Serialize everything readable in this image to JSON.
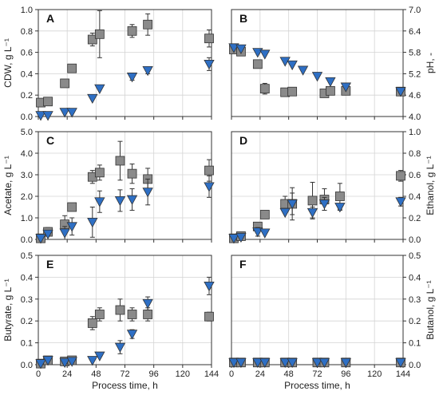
{
  "colors": {
    "square": "#8a8a8a",
    "triangle": "#2e6fc4",
    "edge": "#333333"
  },
  "chart_data": [
    {
      "type": "scatter",
      "panel": "A",
      "xlabel": "",
      "ylabel": "CDW, g L⁻¹",
      "xlim": [
        0,
        144
      ],
      "ylim": [
        0,
        1.0
      ],
      "xticks": [
        0,
        24,
        48,
        72,
        96,
        120,
        144
      ],
      "yticks": [
        0,
        0.2,
        0.4,
        0.6,
        0.8,
        1.0
      ],
      "xtick_labels": [
        "",
        "",
        "",
        "",
        "",
        "",
        ""
      ],
      "ytick_labels": [
        "0.0",
        "0.2",
        "0.4",
        "0.6",
        "0.8",
        "1.0"
      ],
      "grid": true,
      "series": [
        {
          "marker": "square",
          "points": [
            {
              "x": 2,
              "y": 0.13,
              "err": 0.03
            },
            {
              "x": 8,
              "y": 0.14,
              "err": 0
            },
            {
              "x": 22,
              "y": 0.31,
              "err": 0
            },
            {
              "x": 28,
              "y": 0.45,
              "err": 0
            },
            {
              "x": 45,
              "y": 0.72,
              "err": 0.06
            },
            {
              "x": 51,
              "y": 0.77,
              "err": 0.22
            },
            {
              "x": 78,
              "y": 0.8,
              "err": 0.06
            },
            {
              "x": 91,
              "y": 0.86,
              "err": 0.1
            },
            {
              "x": 142,
              "y": 0.73,
              "err": 0.08
            }
          ]
        },
        {
          "marker": "triangle",
          "points": [
            {
              "x": 2,
              "y": 0.01,
              "err": 0
            },
            {
              "x": 8,
              "y": 0.01,
              "err": 0
            },
            {
              "x": 22,
              "y": 0.04,
              "err": 0
            },
            {
              "x": 28,
              "y": 0.04,
              "err": 0
            },
            {
              "x": 45,
              "y": 0.17,
              "err": 0
            },
            {
              "x": 51,
              "y": 0.26,
              "err": 0
            },
            {
              "x": 78,
              "y": 0.37,
              "err": 0.03
            },
            {
              "x": 91,
              "y": 0.43,
              "err": 0.03
            },
            {
              "x": 142,
              "y": 0.49,
              "err": 0.06
            }
          ]
        }
      ]
    },
    {
      "type": "scatter",
      "panel": "B",
      "xlabel": "",
      "ylabel": "pH, -",
      "xlim": [
        0,
        144
      ],
      "ylim": [
        4.0,
        7.0
      ],
      "xticks": [
        0,
        24,
        48,
        72,
        96,
        120,
        144
      ],
      "yticks": [
        4.0,
        4.6,
        5.2,
        5.8,
        6.4,
        7.0
      ],
      "xtick_labels": [
        "",
        "",
        "",
        "",
        "",
        "",
        ""
      ],
      "ytick_labels": [
        "4.0",
        "4.6",
        "5.2",
        "5.8",
        "6.4",
        "7.0"
      ],
      "grid": true,
      "series": [
        {
          "marker": "square",
          "points": [
            {
              "x": 2,
              "y": 5.88,
              "err": 0
            },
            {
              "x": 8,
              "y": 5.82,
              "err": 0
            },
            {
              "x": 22,
              "y": 5.47,
              "err": 0
            },
            {
              "x": 28,
              "y": 4.78,
              "err": 0.15
            },
            {
              "x": 45,
              "y": 4.68,
              "err": 0
            },
            {
              "x": 51,
              "y": 4.7,
              "err": 0
            },
            {
              "x": 78,
              "y": 4.65,
              "err": 0
            },
            {
              "x": 83,
              "y": 4.72,
              "err": 0
            },
            {
              "x": 96,
              "y": 4.72,
              "err": 0
            },
            {
              "x": 142,
              "y": 4.7,
              "err": 0
            }
          ]
        },
        {
          "marker": "triangle",
          "points": [
            {
              "x": 2,
              "y": 5.93,
              "err": 0
            },
            {
              "x": 8,
              "y": 5.9,
              "err": 0
            },
            {
              "x": 22,
              "y": 5.8,
              "err": 0
            },
            {
              "x": 28,
              "y": 5.75,
              "err": 0
            },
            {
              "x": 45,
              "y": 5.55,
              "err": 0
            },
            {
              "x": 51,
              "y": 5.45,
              "err": 0
            },
            {
              "x": 60,
              "y": 5.3,
              "err": 0
            },
            {
              "x": 72,
              "y": 5.13,
              "err": 0
            },
            {
              "x": 83,
              "y": 4.98,
              "err": 0
            },
            {
              "x": 96,
              "y": 4.83,
              "err": 0
            },
            {
              "x": 142,
              "y": 4.7,
              "err": 0
            }
          ]
        }
      ]
    },
    {
      "type": "scatter",
      "panel": "C",
      "xlabel": "",
      "ylabel": "Acetate, g L⁻¹",
      "xlim": [
        0,
        144
      ],
      "ylim": [
        0,
        5.0
      ],
      "xticks": [
        0,
        24,
        48,
        72,
        96,
        120,
        144
      ],
      "yticks": [
        0,
        1,
        2,
        3,
        4,
        5
      ],
      "xtick_labels": [
        "",
        "",
        "",
        "",
        "",
        "",
        ""
      ],
      "ytick_labels": [
        "0.0",
        "1.0",
        "2.0",
        "3.0",
        "4.0",
        "5.0"
      ],
      "grid": true,
      "series": [
        {
          "marker": "square",
          "points": [
            {
              "x": 2,
              "y": 0.05,
              "err": 0.1
            },
            {
              "x": 8,
              "y": 0.35,
              "err": 0.2
            },
            {
              "x": 22,
              "y": 0.7,
              "err": 0.4
            },
            {
              "x": 28,
              "y": 1.5,
              "err": 0
            },
            {
              "x": 45,
              "y": 2.9,
              "err": 0.3
            },
            {
              "x": 51,
              "y": 3.1,
              "err": 0.35
            },
            {
              "x": 68,
              "y": 3.65,
              "err": 0.9
            },
            {
              "x": 78,
              "y": 3.05,
              "err": 0.45
            },
            {
              "x": 91,
              "y": 2.8,
              "err": 0.5
            },
            {
              "x": 142,
              "y": 3.2,
              "err": 0.5
            }
          ]
        },
        {
          "marker": "triangle",
          "points": [
            {
              "x": 2,
              "y": 0.05,
              "err": 0
            },
            {
              "x": 8,
              "y": 0.25,
              "err": 0.1
            },
            {
              "x": 22,
              "y": 0.3,
              "err": 0.3
            },
            {
              "x": 28,
              "y": 0.6,
              "err": 0.4
            },
            {
              "x": 45,
              "y": 0.8,
              "err": 0.7
            },
            {
              "x": 51,
              "y": 1.75,
              "err": 0.5
            },
            {
              "x": 68,
              "y": 1.8,
              "err": 0.5
            },
            {
              "x": 78,
              "y": 1.85,
              "err": 0.5
            },
            {
              "x": 91,
              "y": 2.2,
              "err": 0.6
            },
            {
              "x": 142,
              "y": 2.45,
              "err": 0.5
            }
          ]
        }
      ]
    },
    {
      "type": "scatter",
      "panel": "D",
      "xlabel": "",
      "ylabel": "Ethanol, g L⁻¹",
      "xlim": [
        0,
        144
      ],
      "ylim": [
        0,
        1.0
      ],
      "xticks": [
        0,
        24,
        48,
        72,
        96,
        120,
        144
      ],
      "yticks": [
        0,
        0.2,
        0.4,
        0.6,
        0.8,
        1.0
      ],
      "xtick_labels": [
        "",
        "",
        "",
        "",
        "",
        "",
        ""
      ],
      "ytick_labels": [
        "0.0",
        "0.2",
        "0.4",
        "0.6",
        "0.8",
        "1.0"
      ],
      "grid": true,
      "series": [
        {
          "marker": "square",
          "points": [
            {
              "x": 2,
              "y": 0.01,
              "err": 0
            },
            {
              "x": 8,
              "y": 0.03,
              "err": 0
            },
            {
              "x": 22,
              "y": 0.12,
              "err": 0
            },
            {
              "x": 28,
              "y": 0.23,
              "err": 0
            },
            {
              "x": 45,
              "y": 0.33,
              "err": 0.07
            },
            {
              "x": 51,
              "y": 0.33,
              "err": 0.15
            },
            {
              "x": 68,
              "y": 0.36,
              "err": 0.17
            },
            {
              "x": 78,
              "y": 0.37,
              "err": 0.1
            },
            {
              "x": 91,
              "y": 0.4,
              "err": 0.12
            },
            {
              "x": 142,
              "y": 0.59,
              "err": 0.05
            }
          ]
        },
        {
          "marker": "triangle",
          "points": [
            {
              "x": 2,
              "y": 0.01,
              "err": 0
            },
            {
              "x": 8,
              "y": 0.02,
              "err": 0
            },
            {
              "x": 22,
              "y": 0.07,
              "err": 0.04
            },
            {
              "x": 28,
              "y": 0.06,
              "err": 0
            },
            {
              "x": 45,
              "y": 0.25,
              "err": 0
            },
            {
              "x": 51,
              "y": 0.33,
              "err": 0.1
            },
            {
              "x": 68,
              "y": 0.25,
              "err": 0.05
            },
            {
              "x": 78,
              "y": 0.33,
              "err": 0.06
            },
            {
              "x": 91,
              "y": 0.3,
              "err": 0.03
            },
            {
              "x": 142,
              "y": 0.35,
              "err": 0.04
            }
          ]
        }
      ]
    },
    {
      "type": "scatter",
      "panel": "E",
      "xlabel": "Process time, h",
      "ylabel": "Butyrate, g L⁻¹",
      "xlim": [
        0,
        144
      ],
      "ylim": [
        0,
        0.5
      ],
      "xticks": [
        0,
        24,
        48,
        72,
        96,
        120,
        144
      ],
      "yticks": [
        0,
        0.1,
        0.2,
        0.3,
        0.4,
        0.5
      ],
      "xtick_labels": [
        "0",
        "24",
        "48",
        "72",
        "96",
        "120",
        "144"
      ],
      "ytick_labels": [
        "0.0",
        "0.1",
        "0.2",
        "0.3",
        "0.4",
        "0.5"
      ],
      "grid": true,
      "series": [
        {
          "marker": "square",
          "points": [
            {
              "x": 2,
              "y": 0.005,
              "err": 0
            },
            {
              "x": 8,
              "y": 0.02,
              "err": 0
            },
            {
              "x": 22,
              "y": 0.015,
              "err": 0
            },
            {
              "x": 28,
              "y": 0.02,
              "err": 0
            },
            {
              "x": 45,
              "y": 0.19,
              "err": 0.03
            },
            {
              "x": 51,
              "y": 0.23,
              "err": 0.03
            },
            {
              "x": 68,
              "y": 0.25,
              "err": 0.05
            },
            {
              "x": 78,
              "y": 0.23,
              "err": 0.03
            },
            {
              "x": 91,
              "y": 0.23,
              "err": 0.03
            },
            {
              "x": 142,
              "y": 0.22,
              "err": 0.02
            }
          ]
        },
        {
          "marker": "triangle",
          "points": [
            {
              "x": 2,
              "y": 0.005,
              "err": 0
            },
            {
              "x": 8,
              "y": 0.02,
              "err": 0
            },
            {
              "x": 22,
              "y": 0.01,
              "err": 0
            },
            {
              "x": 28,
              "y": 0.015,
              "err": 0
            },
            {
              "x": 45,
              "y": 0.02,
              "err": 0
            },
            {
              "x": 51,
              "y": 0.04,
              "err": 0
            },
            {
              "x": 68,
              "y": 0.08,
              "err": 0.03
            },
            {
              "x": 78,
              "y": 0.14,
              "err": 0.02
            },
            {
              "x": 91,
              "y": 0.28,
              "err": 0.03
            },
            {
              "x": 142,
              "y": 0.36,
              "err": 0.04
            }
          ]
        }
      ]
    },
    {
      "type": "scatter",
      "panel": "F",
      "xlabel": "Process time, h",
      "ylabel": "Butanol, g L⁻¹",
      "xlim": [
        0,
        144
      ],
      "ylim": [
        0,
        0.5
      ],
      "xticks": [
        0,
        24,
        48,
        72,
        96,
        120,
        144
      ],
      "yticks": [
        0,
        0.1,
        0.2,
        0.3,
        0.4,
        0.5
      ],
      "xtick_labels": [
        "0",
        "24",
        "48",
        "72",
        "96",
        "120",
        "144"
      ],
      "ytick_labels": [
        "0.0",
        "0.1",
        "0.2",
        "0.3",
        "0.4",
        "0.5"
      ],
      "grid": true,
      "series": [
        {
          "marker": "square",
          "points": [
            {
              "x": 2,
              "y": 0.01,
              "err": 0
            },
            {
              "x": 8,
              "y": 0.01,
              "err": 0
            },
            {
              "x": 22,
              "y": 0.01,
              "err": 0
            },
            {
              "x": 28,
              "y": 0.01,
              "err": 0
            },
            {
              "x": 45,
              "y": 0.01,
              "err": 0
            },
            {
              "x": 51,
              "y": 0.01,
              "err": 0
            },
            {
              "x": 72,
              "y": 0.01,
              "err": 0
            },
            {
              "x": 78,
              "y": 0.01,
              "err": 0
            },
            {
              "x": 96,
              "y": 0.01,
              "err": 0
            },
            {
              "x": 142,
              "y": 0.01,
              "err": 0
            }
          ]
        },
        {
          "marker": "triangle",
          "points": [
            {
              "x": 2,
              "y": 0.01,
              "err": 0
            },
            {
              "x": 8,
              "y": 0.01,
              "err": 0
            },
            {
              "x": 22,
              "y": 0.01,
              "err": 0
            },
            {
              "x": 28,
              "y": 0.01,
              "err": 0
            },
            {
              "x": 45,
              "y": 0.01,
              "err": 0
            },
            {
              "x": 51,
              "y": 0.01,
              "err": 0
            },
            {
              "x": 72,
              "y": 0.01,
              "err": 0
            },
            {
              "x": 78,
              "y": 0.01,
              "err": 0
            },
            {
              "x": 96,
              "y": 0.01,
              "err": 0
            },
            {
              "x": 142,
              "y": 0.01,
              "err": 0
            }
          ]
        }
      ]
    }
  ]
}
